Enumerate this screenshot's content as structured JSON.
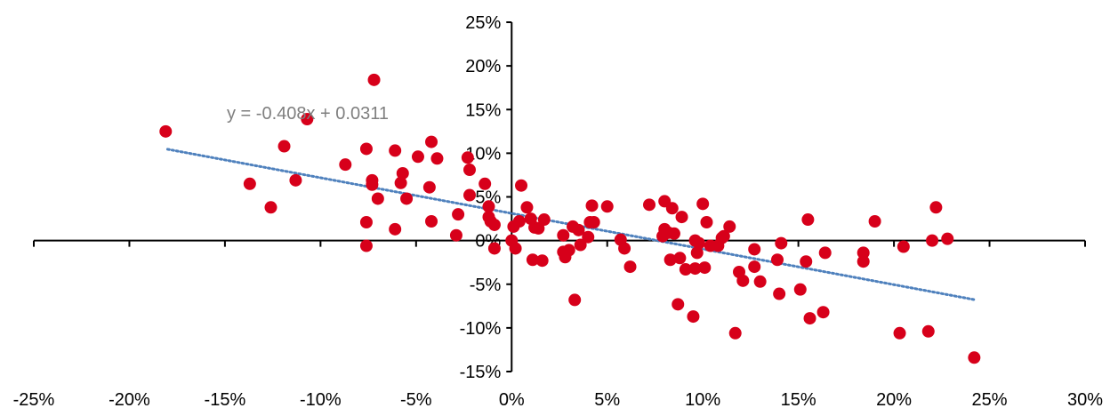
{
  "chart_data": {
    "type": "scatter",
    "title": "",
    "xlabel": "",
    "ylabel": "",
    "xlim": [
      -0.25,
      0.3
    ],
    "ylim": [
      -0.15,
      0.25
    ],
    "x_ticks": [
      "-25%",
      "-20%",
      "-15%",
      "-10%",
      "-5%",
      "0%",
      "5%",
      "10%",
      "15%",
      "20%",
      "25%",
      "30%"
    ],
    "y_ticks": [
      "25%",
      "20%",
      "15%",
      "10%",
      "5%",
      "0%",
      "-5%",
      "-10%",
      "-15%"
    ],
    "grid": false,
    "legend": "none",
    "marker_color": "#d7001a",
    "trendline_color": "#4f81bd",
    "trendline": {
      "style": "dotted",
      "slope": -0.408,
      "intercept": 0.0311,
      "x_range": [
        -0.18,
        0.242
      ],
      "equation_label": "y = -0.408x + 0.0311"
    },
    "series": [
      {
        "points": [
          [
            -0.181,
            0.125
          ],
          [
            -0.137,
            0.065
          ],
          [
            -0.126,
            0.038
          ],
          [
            -0.119,
            0.108
          ],
          [
            -0.113,
            0.069
          ],
          [
            -0.107,
            0.139
          ],
          [
            -0.087,
            0.087
          ],
          [
            -0.076,
            0.105
          ],
          [
            -0.076,
            0.021
          ],
          [
            -0.076,
            -0.006
          ],
          [
            -0.073,
            0.069
          ],
          [
            -0.072,
            0.184
          ],
          [
            -0.073,
            0.064
          ],
          [
            -0.07,
            0.048
          ],
          [
            -0.061,
            0.103
          ],
          [
            -0.061,
            0.013
          ],
          [
            -0.058,
            0.066
          ],
          [
            -0.057,
            0.077
          ],
          [
            -0.055,
            0.048
          ],
          [
            -0.049,
            0.096
          ],
          [
            -0.042,
            0.113
          ],
          [
            -0.043,
            0.061
          ],
          [
            -0.042,
            0.022
          ],
          [
            -0.039,
            0.094
          ],
          [
            -0.029,
            0.006
          ],
          [
            -0.028,
            0.03
          ],
          [
            -0.023,
            0.095
          ],
          [
            -0.022,
            0.081
          ],
          [
            -0.022,
            0.052
          ],
          [
            -0.014,
            0.065
          ],
          [
            -0.012,
            0.039
          ],
          [
            -0.012,
            0.027
          ],
          [
            -0.011,
            0.022
          ],
          [
            -0.009,
            0.018
          ],
          [
            -0.009,
            -0.009
          ],
          [
            0.0,
            0.0
          ],
          [
            0.001,
            0.016
          ],
          [
            0.002,
            -0.009
          ],
          [
            0.004,
            0.022
          ],
          [
            0.005,
            0.063
          ],
          [
            0.008,
            0.038
          ],
          [
            0.01,
            0.025
          ],
          [
            0.011,
            -0.022
          ],
          [
            0.012,
            0.015
          ],
          [
            0.014,
            0.014
          ],
          [
            0.016,
            -0.023
          ],
          [
            0.017,
            0.024
          ],
          [
            0.027,
            0.006
          ],
          [
            0.027,
            -0.013
          ],
          [
            0.028,
            -0.019
          ],
          [
            0.03,
            -0.011
          ],
          [
            0.032,
            0.016
          ],
          [
            0.033,
            -0.068
          ],
          [
            0.035,
            0.012
          ],
          [
            0.036,
            -0.005
          ],
          [
            0.04,
            0.004
          ],
          [
            0.041,
            0.021
          ],
          [
            0.042,
            0.04
          ],
          [
            0.043,
            0.021
          ],
          [
            0.05,
            0.039
          ],
          [
            0.057,
            0.001
          ],
          [
            0.059,
            -0.009
          ],
          [
            0.062,
            -0.03
          ],
          [
            0.072,
            0.041
          ],
          [
            0.079,
            0.005
          ],
          [
            0.08,
            0.045
          ],
          [
            0.08,
            0.013
          ],
          [
            0.082,
            0.009
          ],
          [
            0.083,
            -0.022
          ],
          [
            0.084,
            0.037
          ],
          [
            0.085,
            0.008
          ],
          [
            0.087,
            -0.073
          ],
          [
            0.088,
            -0.02
          ],
          [
            0.089,
            0.027
          ],
          [
            0.091,
            -0.033
          ],
          [
            0.095,
            -0.087
          ],
          [
            0.096,
            0.0
          ],
          [
            0.096,
            -0.032
          ],
          [
            0.097,
            -0.014
          ],
          [
            0.098,
            -0.003
          ],
          [
            0.1,
            0.042
          ],
          [
            0.101,
            -0.031
          ],
          [
            0.102,
            0.021
          ],
          [
            0.104,
            -0.006
          ],
          [
            0.108,
            -0.006
          ],
          [
            0.11,
            0.003
          ],
          [
            0.111,
            0.005
          ],
          [
            0.114,
            0.016
          ],
          [
            0.117,
            -0.106
          ],
          [
            0.119,
            -0.036
          ],
          [
            0.121,
            -0.046
          ],
          [
            0.127,
            -0.01
          ],
          [
            0.127,
            -0.03
          ],
          [
            0.13,
            -0.047
          ],
          [
            0.139,
            -0.022
          ],
          [
            0.14,
            -0.061
          ],
          [
            0.141,
            -0.003
          ],
          [
            0.151,
            -0.056
          ],
          [
            0.154,
            -0.024
          ],
          [
            0.155,
            0.024
          ],
          [
            0.156,
            -0.089
          ],
          [
            0.163,
            -0.082
          ],
          [
            0.164,
            -0.014
          ],
          [
            0.184,
            -0.014
          ],
          [
            0.184,
            -0.024
          ],
          [
            0.19,
            0.022
          ],
          [
            0.203,
            -0.106
          ],
          [
            0.205,
            -0.007
          ],
          [
            0.218,
            -0.104
          ],
          [
            0.22,
            0.0
          ],
          [
            0.222,
            0.038
          ],
          [
            0.228,
            0.002
          ],
          [
            0.242,
            -0.134
          ]
        ]
      }
    ]
  }
}
